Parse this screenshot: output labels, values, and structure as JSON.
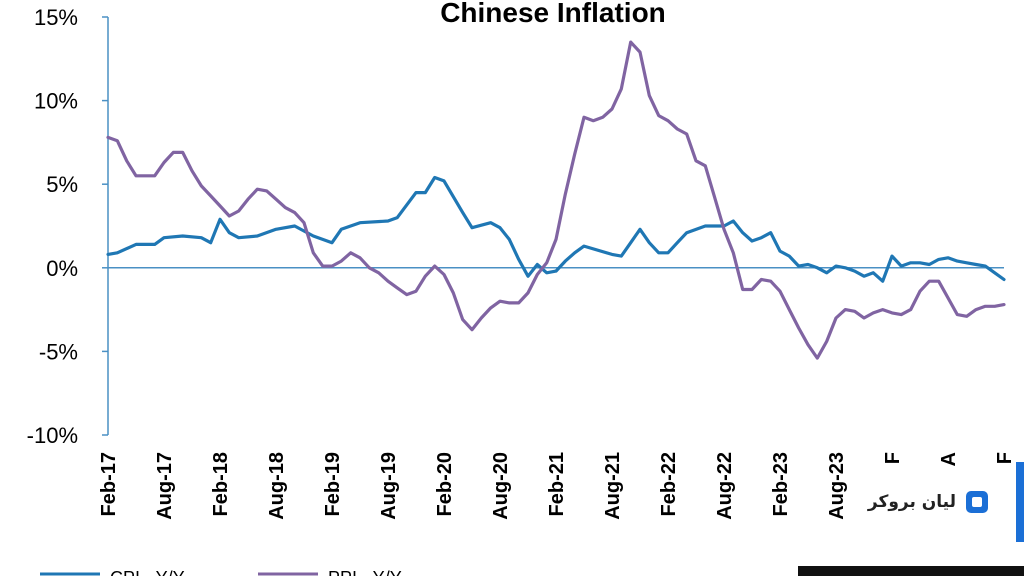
{
  "chart_data": {
    "type": "line",
    "title": "Chinese Inflation",
    "ylim": [
      -10,
      15
    ],
    "yticks": [
      {
        "value": 15,
        "label": "15%"
      },
      {
        "value": 10,
        "label": "10%"
      },
      {
        "value": 5,
        "label": "5%"
      },
      {
        "value": 0,
        "label": "0%"
      },
      {
        "value": -5,
        "label": "-5%"
      },
      {
        "value": -10,
        "label": "-10%"
      }
    ],
    "xticks": [
      {
        "x": "2017-02",
        "label": "Feb-17"
      },
      {
        "x": "2017-08",
        "label": "Aug-17"
      },
      {
        "x": "2018-02",
        "label": "Feb-18"
      },
      {
        "x": "2018-08",
        "label": "Aug-18"
      },
      {
        "x": "2019-02",
        "label": "Feb-19"
      },
      {
        "x": "2019-08",
        "label": "Aug-19"
      },
      {
        "x": "2020-02",
        "label": "Feb-20"
      },
      {
        "x": "2020-08",
        "label": "Aug-20"
      },
      {
        "x": "2021-02",
        "label": "Feb-21"
      },
      {
        "x": "2021-08",
        "label": "Aug-21"
      },
      {
        "x": "2022-02",
        "label": "Feb-22"
      },
      {
        "x": "2022-08",
        "label": "Aug-22"
      },
      {
        "x": "2023-02",
        "label": "Feb-23"
      },
      {
        "x": "2023-08",
        "label": "Aug-23"
      },
      {
        "x": "2024-02",
        "label": "F"
      },
      {
        "x": "2024-08",
        "label": "A"
      },
      {
        "x": "2025-02",
        "label": "F"
      }
    ],
    "x_range": [
      "2017-02",
      "2025-02"
    ],
    "grid": false,
    "legend": {
      "position": "bottom",
      "entries": [
        "CPI - Y/Y",
        "PPI - Y/Y"
      ]
    },
    "series": [
      {
        "name": "CPI - Y/Y",
        "color": "#1f77b4",
        "points": [
          [
            "2017-02",
            0.8
          ],
          [
            "2017-03",
            0.9
          ],
          [
            "2017-05",
            1.4
          ],
          [
            "2017-07",
            1.4
          ],
          [
            "2017-08",
            1.8
          ],
          [
            "2017-10",
            1.9
          ],
          [
            "2017-12",
            1.8
          ],
          [
            "2018-01",
            1.5
          ],
          [
            "2018-02",
            2.9
          ],
          [
            "2018-03",
            2.1
          ],
          [
            "2018-04",
            1.8
          ],
          [
            "2018-06",
            1.9
          ],
          [
            "2018-08",
            2.3
          ],
          [
            "2018-10",
            2.5
          ],
          [
            "2018-12",
            1.9
          ],
          [
            "2019-01",
            1.7
          ],
          [
            "2019-02",
            1.5
          ],
          [
            "2019-03",
            2.3
          ],
          [
            "2019-05",
            2.7
          ],
          [
            "2019-08",
            2.8
          ],
          [
            "2019-09",
            3.0
          ],
          [
            "2019-11",
            4.5
          ],
          [
            "2019-12",
            4.5
          ],
          [
            "2020-01",
            5.4
          ],
          [
            "2020-02",
            5.2
          ],
          [
            "2020-04",
            3.3
          ],
          [
            "2020-05",
            2.4
          ],
          [
            "2020-07",
            2.7
          ],
          [
            "2020-08",
            2.4
          ],
          [
            "2020-09",
            1.7
          ],
          [
            "2020-10",
            0.5
          ],
          [
            "2020-11",
            -0.5
          ],
          [
            "2020-12",
            0.2
          ],
          [
            "2021-01",
            -0.3
          ],
          [
            "2021-02",
            -0.2
          ],
          [
            "2021-03",
            0.4
          ],
          [
            "2021-04",
            0.9
          ],
          [
            "2021-05",
            1.3
          ],
          [
            "2021-08",
            0.8
          ],
          [
            "2021-09",
            0.7
          ],
          [
            "2021-10",
            1.5
          ],
          [
            "2021-11",
            2.3
          ],
          [
            "2021-12",
            1.5
          ],
          [
            "2022-01",
            0.9
          ],
          [
            "2022-02",
            0.9
          ],
          [
            "2022-03",
            1.5
          ],
          [
            "2022-04",
            2.1
          ],
          [
            "2022-06",
            2.5
          ],
          [
            "2022-08",
            2.5
          ],
          [
            "2022-09",
            2.8
          ],
          [
            "2022-10",
            2.1
          ],
          [
            "2022-11",
            1.6
          ],
          [
            "2022-12",
            1.8
          ],
          [
            "2023-01",
            2.1
          ],
          [
            "2023-02",
            1.0
          ],
          [
            "2023-03",
            0.7
          ],
          [
            "2023-04",
            0.1
          ],
          [
            "2023-05",
            0.2
          ],
          [
            "2023-06",
            0.0
          ],
          [
            "2023-07",
            -0.3
          ],
          [
            "2023-08",
            0.1
          ],
          [
            "2023-09",
            0.0
          ],
          [
            "2023-10",
            -0.2
          ],
          [
            "2023-11",
            -0.5
          ],
          [
            "2023-12",
            -0.3
          ],
          [
            "2024-01",
            -0.8
          ],
          [
            "2024-02",
            0.7
          ],
          [
            "2024-03",
            0.1
          ],
          [
            "2024-04",
            0.3
          ],
          [
            "2024-05",
            0.3
          ],
          [
            "2024-06",
            0.2
          ],
          [
            "2024-07",
            0.5
          ],
          [
            "2024-08",
            0.6
          ],
          [
            "2024-09",
            0.4
          ],
          [
            "2024-10",
            0.3
          ],
          [
            "2024-11",
            0.2
          ],
          [
            "2024-12",
            0.1
          ],
          [
            "2025-01",
            -0.3
          ],
          [
            "2025-02",
            -0.7
          ]
        ]
      },
      {
        "name": "PPI - Y/Y",
        "color": "#8064a2",
        "points": [
          [
            "2017-02",
            7.8
          ],
          [
            "2017-03",
            7.6
          ],
          [
            "2017-04",
            6.4
          ],
          [
            "2017-05",
            5.5
          ],
          [
            "2017-07",
            5.5
          ],
          [
            "2017-08",
            6.3
          ],
          [
            "2017-09",
            6.9
          ],
          [
            "2017-10",
            6.9
          ],
          [
            "2017-11",
            5.8
          ],
          [
            "2017-12",
            4.9
          ],
          [
            "2018-01",
            4.3
          ],
          [
            "2018-02",
            3.7
          ],
          [
            "2018-03",
            3.1
          ],
          [
            "2018-04",
            3.4
          ],
          [
            "2018-05",
            4.1
          ],
          [
            "2018-06",
            4.7
          ],
          [
            "2018-07",
            4.6
          ],
          [
            "2018-08",
            4.1
          ],
          [
            "2018-09",
            3.6
          ],
          [
            "2018-10",
            3.3
          ],
          [
            "2018-11",
            2.7
          ],
          [
            "2018-12",
            0.9
          ],
          [
            "2019-01",
            0.1
          ],
          [
            "2019-02",
            0.1
          ],
          [
            "2019-03",
            0.4
          ],
          [
            "2019-04",
            0.9
          ],
          [
            "2019-05",
            0.6
          ],
          [
            "2019-06",
            0.0
          ],
          [
            "2019-07",
            -0.3
          ],
          [
            "2019-08",
            -0.8
          ],
          [
            "2019-09",
            -1.2
          ],
          [
            "2019-10",
            -1.6
          ],
          [
            "2019-11",
            -1.4
          ],
          [
            "2019-12",
            -0.5
          ],
          [
            "2020-01",
            0.1
          ],
          [
            "2020-02",
            -0.4
          ],
          [
            "2020-03",
            -1.5
          ],
          [
            "2020-04",
            -3.1
          ],
          [
            "2020-05",
            -3.7
          ],
          [
            "2020-06",
            -3.0
          ],
          [
            "2020-07",
            -2.4
          ],
          [
            "2020-08",
            -2.0
          ],
          [
            "2020-09",
            -2.1
          ],
          [
            "2020-10",
            -2.1
          ],
          [
            "2020-11",
            -1.5
          ],
          [
            "2020-12",
            -0.4
          ],
          [
            "2021-01",
            0.3
          ],
          [
            "2021-02",
            1.7
          ],
          [
            "2021-03",
            4.4
          ],
          [
            "2021-04",
            6.8
          ],
          [
            "2021-05",
            9.0
          ],
          [
            "2021-06",
            8.8
          ],
          [
            "2021-07",
            9.0
          ],
          [
            "2021-08",
            9.5
          ],
          [
            "2021-09",
            10.7
          ],
          [
            "2021-10",
            13.5
          ],
          [
            "2021-11",
            12.9
          ],
          [
            "2021-12",
            10.3
          ],
          [
            "2022-01",
            9.1
          ],
          [
            "2022-02",
            8.8
          ],
          [
            "2022-03",
            8.3
          ],
          [
            "2022-04",
            8.0
          ],
          [
            "2022-05",
            6.4
          ],
          [
            "2022-06",
            6.1
          ],
          [
            "2022-07",
            4.2
          ],
          [
            "2022-08",
            2.3
          ],
          [
            "2022-09",
            0.9
          ],
          [
            "2022-10",
            -1.3
          ],
          [
            "2022-11",
            -1.3
          ],
          [
            "2022-12",
            -0.7
          ],
          [
            "2023-01",
            -0.8
          ],
          [
            "2023-02",
            -1.4
          ],
          [
            "2023-03",
            -2.5
          ],
          [
            "2023-04",
            -3.6
          ],
          [
            "2023-05",
            -4.6
          ],
          [
            "2023-06",
            -5.4
          ],
          [
            "2023-07",
            -4.4
          ],
          [
            "2023-08",
            -3.0
          ],
          [
            "2023-09",
            -2.5
          ],
          [
            "2023-10",
            -2.6
          ],
          [
            "2023-11",
            -3.0
          ],
          [
            "2023-12",
            -2.7
          ],
          [
            "2024-01",
            -2.5
          ],
          [
            "2024-02",
            -2.7
          ],
          [
            "2024-03",
            -2.8
          ],
          [
            "2024-04",
            -2.5
          ],
          [
            "2024-05",
            -1.4
          ],
          [
            "2024-06",
            -0.8
          ],
          [
            "2024-07",
            -0.8
          ],
          [
            "2024-08",
            -1.8
          ],
          [
            "2024-09",
            -2.8
          ],
          [
            "2024-10",
            -2.9
          ],
          [
            "2024-11",
            -2.5
          ],
          [
            "2024-12",
            -2.3
          ],
          [
            "2025-01",
            -2.3
          ],
          [
            "2025-02",
            -2.2
          ]
        ]
      }
    ]
  },
  "watermark": {
    "text": "لیان بروکر",
    "logo_icon": "broker-logo-icon"
  }
}
